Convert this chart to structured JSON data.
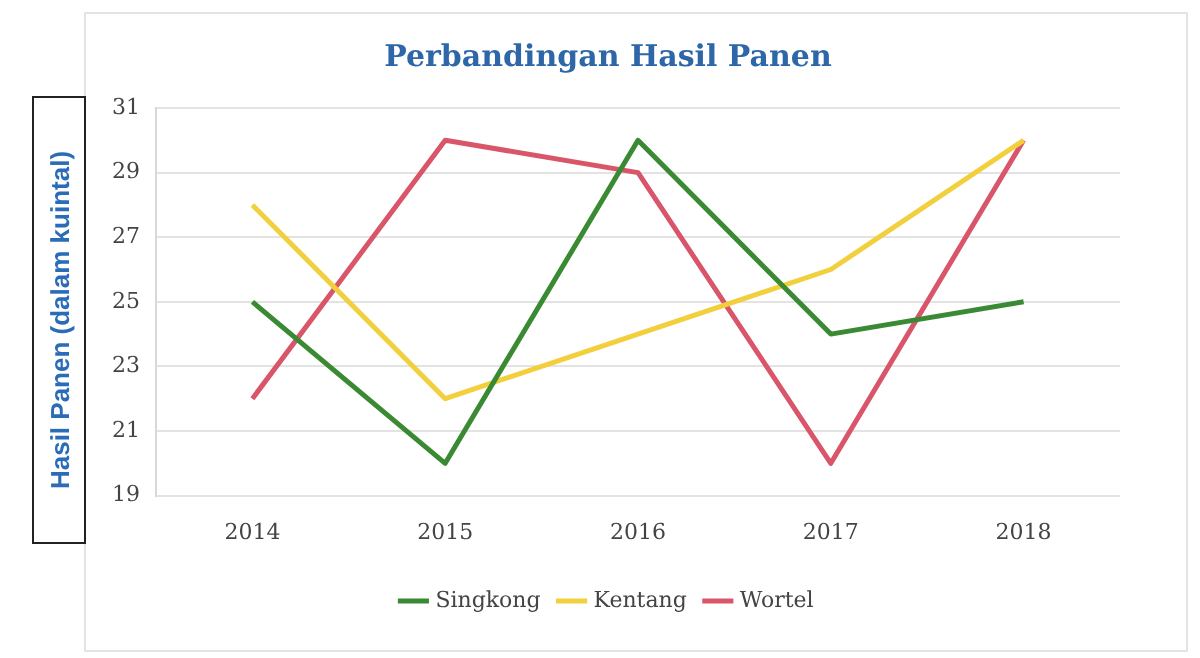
{
  "chart_data": {
    "type": "line",
    "title": "Perbandingan Hasil Panen",
    "ylabel": "Hasil Panen (dalam kuintal)",
    "categories": [
      "2014",
      "2015",
      "2016",
      "2017",
      "2018"
    ],
    "series": [
      {
        "name": "Singkong",
        "color": "#3a8a34",
        "values": [
          25,
          20,
          30,
          24,
          25
        ]
      },
      {
        "name": "Kentang",
        "color": "#f2cf3c",
        "values": [
          28,
          22,
          24,
          26,
          30
        ]
      },
      {
        "name": "Wortel",
        "color": "#d9566a",
        "values": [
          22,
          30,
          29,
          20,
          30
        ]
      }
    ],
    "ylim": [
      19,
      31
    ],
    "yticks": [
      19,
      21,
      23,
      25,
      27,
      29,
      31
    ],
    "grid": "y",
    "legend": "bottom",
    "marker": "none",
    "line_style": "solid"
  }
}
